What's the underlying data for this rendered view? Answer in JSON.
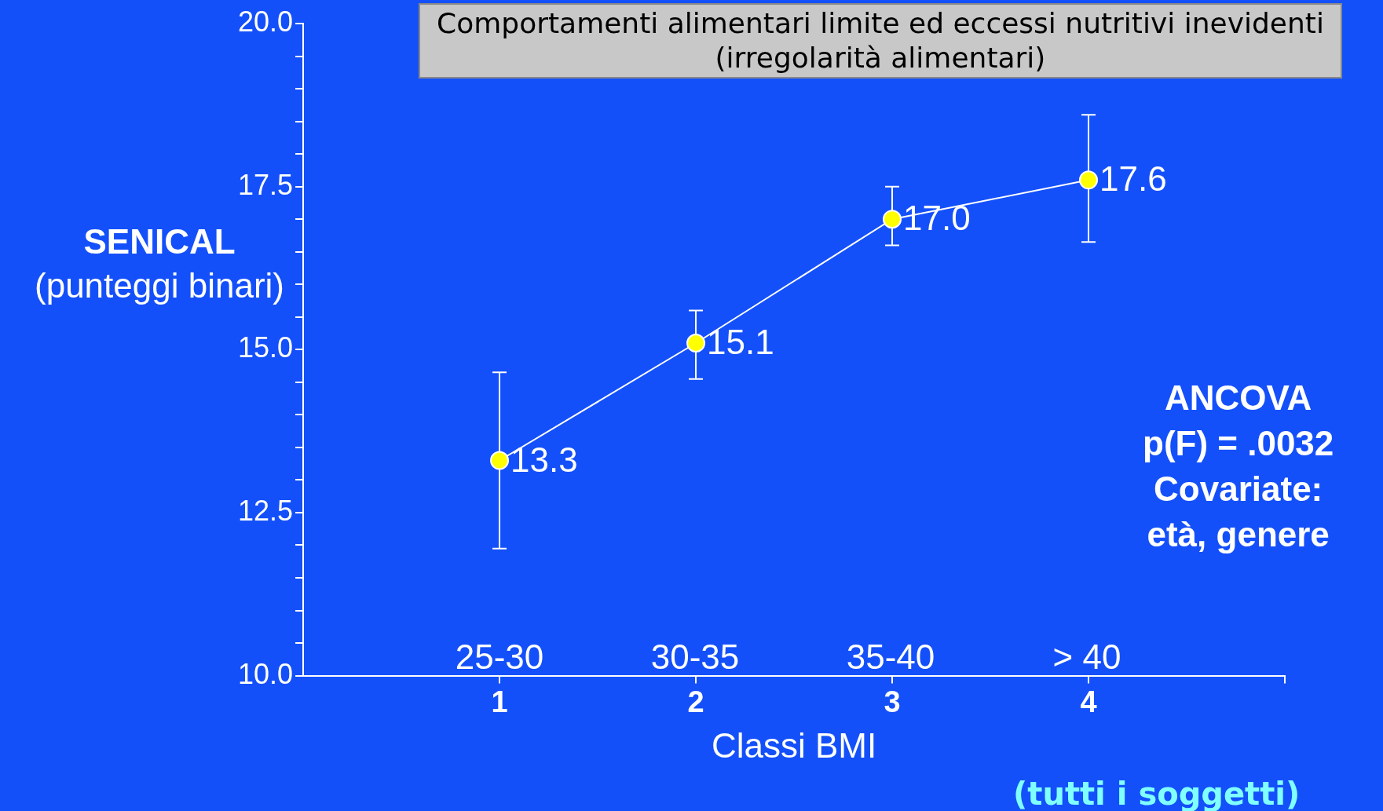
{
  "chart_data": {
    "type": "line",
    "title": "Comportamenti alimentari limite ed eccessi nutritivi inevidenti (irregolarità alimentari)",
    "xlabel": "Classi BMI",
    "ylabel": "SENICAL\n(punteggi binari)",
    "x": [
      1,
      2,
      3,
      4
    ],
    "series": [
      {
        "color": "#ffff00",
        "values": [
          13.3,
          15.1,
          17.0,
          17.6
        ],
        "value_labels": [
          "13.3",
          "15.1",
          "17.0",
          "17.6"
        ],
        "errors": [
          [
            11.95,
            14.65
          ],
          [
            14.55,
            15.6
          ],
          [
            16.6,
            17.5
          ],
          [
            16.65,
            18.6
          ]
        ]
      }
    ],
    "xlim": [
      0,
      5
    ],
    "xticks": [
      1,
      2,
      3,
      4,
      {
        "value": 5,
        "label": null
      }
    ],
    "ylim": [
      10,
      20
    ],
    "yticks": [
      {
        "value": 10,
        "label": "10.0"
      },
      {
        "value": 10.5,
        "label": null
      },
      {
        "value": 11,
        "label": null
      },
      {
        "value": 11.5,
        "label": null
      },
      {
        "value": 12,
        "label": null
      },
      {
        "value": 12.5,
        "label": "12.5"
      },
      {
        "value": 13,
        "label": null
      },
      {
        "value": 13.5,
        "label": null
      },
      {
        "value": 14,
        "label": null
      },
      {
        "value": 14.5,
        "label": null
      },
      {
        "value": 15,
        "label": "15.0"
      },
      {
        "value": 15.5,
        "label": null
      },
      {
        "value": 16,
        "label": null
      },
      {
        "value": 16.5,
        "label": null
      },
      {
        "value": 17,
        "label": null
      },
      {
        "value": 17.5,
        "label": "17.5"
      },
      {
        "value": 18,
        "label": null
      },
      {
        "value": 18.5,
        "label": null
      },
      {
        "value": 19,
        "label": null
      },
      {
        "value": 19.5,
        "label": null
      },
      {
        "value": 20,
        "label": "20.0"
      }
    ],
    "grid": false,
    "legend": false,
    "marker": "circle",
    "line_style": "solid",
    "annotations": [
      "25-30",
      "30-35",
      "35-40",
      "> 40",
      "(tutti i soggetti)",
      "ANCOVA\np(F) = .0032\nCovariate:\netà, genere"
    ]
  }
}
